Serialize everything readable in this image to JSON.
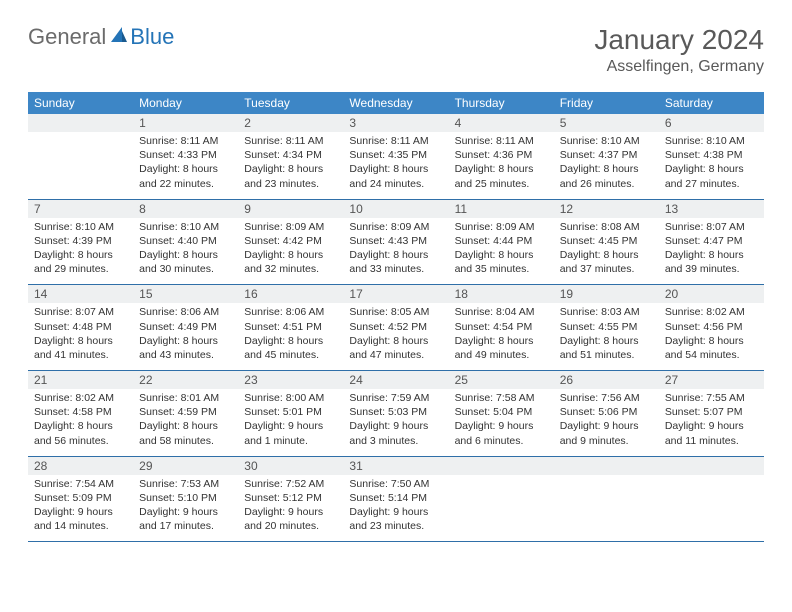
{
  "logo": {
    "part1": "General",
    "part2": "Blue"
  },
  "title": "January 2024",
  "location": "Asselfingen, Germany",
  "colors": {
    "header_bg": "#3d86c6",
    "header_text": "#ffffff",
    "daynum_bg": "#eef0f1",
    "daynum_text": "#555555",
    "body_text": "#333333",
    "rule": "#2f6fa8",
    "logo_gray": "#6b6b6b",
    "logo_blue": "#2474b7",
    "title_color": "#595959",
    "page_bg": "#ffffff"
  },
  "typography": {
    "title_fontsize": 28,
    "location_fontsize": 16,
    "header_fontsize": 12,
    "daynum_fontsize": 12,
    "body_fontsize": 10.5
  },
  "weekdays": [
    "Sunday",
    "Monday",
    "Tuesday",
    "Wednesday",
    "Thursday",
    "Friday",
    "Saturday"
  ],
  "weeks": [
    [
      {
        "n": "",
        "l1": "",
        "l2": "",
        "l3": "",
        "l4": ""
      },
      {
        "n": "1",
        "l1": "Sunrise: 8:11 AM",
        "l2": "Sunset: 4:33 PM",
        "l3": "Daylight: 8 hours",
        "l4": "and 22 minutes."
      },
      {
        "n": "2",
        "l1": "Sunrise: 8:11 AM",
        "l2": "Sunset: 4:34 PM",
        "l3": "Daylight: 8 hours",
        "l4": "and 23 minutes."
      },
      {
        "n": "3",
        "l1": "Sunrise: 8:11 AM",
        "l2": "Sunset: 4:35 PM",
        "l3": "Daylight: 8 hours",
        "l4": "and 24 minutes."
      },
      {
        "n": "4",
        "l1": "Sunrise: 8:11 AM",
        "l2": "Sunset: 4:36 PM",
        "l3": "Daylight: 8 hours",
        "l4": "and 25 minutes."
      },
      {
        "n": "5",
        "l1": "Sunrise: 8:10 AM",
        "l2": "Sunset: 4:37 PM",
        "l3": "Daylight: 8 hours",
        "l4": "and 26 minutes."
      },
      {
        "n": "6",
        "l1": "Sunrise: 8:10 AM",
        "l2": "Sunset: 4:38 PM",
        "l3": "Daylight: 8 hours",
        "l4": "and 27 minutes."
      }
    ],
    [
      {
        "n": "7",
        "l1": "Sunrise: 8:10 AM",
        "l2": "Sunset: 4:39 PM",
        "l3": "Daylight: 8 hours",
        "l4": "and 29 minutes."
      },
      {
        "n": "8",
        "l1": "Sunrise: 8:10 AM",
        "l2": "Sunset: 4:40 PM",
        "l3": "Daylight: 8 hours",
        "l4": "and 30 minutes."
      },
      {
        "n": "9",
        "l1": "Sunrise: 8:09 AM",
        "l2": "Sunset: 4:42 PM",
        "l3": "Daylight: 8 hours",
        "l4": "and 32 minutes."
      },
      {
        "n": "10",
        "l1": "Sunrise: 8:09 AM",
        "l2": "Sunset: 4:43 PM",
        "l3": "Daylight: 8 hours",
        "l4": "and 33 minutes."
      },
      {
        "n": "11",
        "l1": "Sunrise: 8:09 AM",
        "l2": "Sunset: 4:44 PM",
        "l3": "Daylight: 8 hours",
        "l4": "and 35 minutes."
      },
      {
        "n": "12",
        "l1": "Sunrise: 8:08 AM",
        "l2": "Sunset: 4:45 PM",
        "l3": "Daylight: 8 hours",
        "l4": "and 37 minutes."
      },
      {
        "n": "13",
        "l1": "Sunrise: 8:07 AM",
        "l2": "Sunset: 4:47 PM",
        "l3": "Daylight: 8 hours",
        "l4": "and 39 minutes."
      }
    ],
    [
      {
        "n": "14",
        "l1": "Sunrise: 8:07 AM",
        "l2": "Sunset: 4:48 PM",
        "l3": "Daylight: 8 hours",
        "l4": "and 41 minutes."
      },
      {
        "n": "15",
        "l1": "Sunrise: 8:06 AM",
        "l2": "Sunset: 4:49 PM",
        "l3": "Daylight: 8 hours",
        "l4": "and 43 minutes."
      },
      {
        "n": "16",
        "l1": "Sunrise: 8:06 AM",
        "l2": "Sunset: 4:51 PM",
        "l3": "Daylight: 8 hours",
        "l4": "and 45 minutes."
      },
      {
        "n": "17",
        "l1": "Sunrise: 8:05 AM",
        "l2": "Sunset: 4:52 PM",
        "l3": "Daylight: 8 hours",
        "l4": "and 47 minutes."
      },
      {
        "n": "18",
        "l1": "Sunrise: 8:04 AM",
        "l2": "Sunset: 4:54 PM",
        "l3": "Daylight: 8 hours",
        "l4": "and 49 minutes."
      },
      {
        "n": "19",
        "l1": "Sunrise: 8:03 AM",
        "l2": "Sunset: 4:55 PM",
        "l3": "Daylight: 8 hours",
        "l4": "and 51 minutes."
      },
      {
        "n": "20",
        "l1": "Sunrise: 8:02 AM",
        "l2": "Sunset: 4:56 PM",
        "l3": "Daylight: 8 hours",
        "l4": "and 54 minutes."
      }
    ],
    [
      {
        "n": "21",
        "l1": "Sunrise: 8:02 AM",
        "l2": "Sunset: 4:58 PM",
        "l3": "Daylight: 8 hours",
        "l4": "and 56 minutes."
      },
      {
        "n": "22",
        "l1": "Sunrise: 8:01 AM",
        "l2": "Sunset: 4:59 PM",
        "l3": "Daylight: 8 hours",
        "l4": "and 58 minutes."
      },
      {
        "n": "23",
        "l1": "Sunrise: 8:00 AM",
        "l2": "Sunset: 5:01 PM",
        "l3": "Daylight: 9 hours",
        "l4": "and 1 minute."
      },
      {
        "n": "24",
        "l1": "Sunrise: 7:59 AM",
        "l2": "Sunset: 5:03 PM",
        "l3": "Daylight: 9 hours",
        "l4": "and 3 minutes."
      },
      {
        "n": "25",
        "l1": "Sunrise: 7:58 AM",
        "l2": "Sunset: 5:04 PM",
        "l3": "Daylight: 9 hours",
        "l4": "and 6 minutes."
      },
      {
        "n": "26",
        "l1": "Sunrise: 7:56 AM",
        "l2": "Sunset: 5:06 PM",
        "l3": "Daylight: 9 hours",
        "l4": "and 9 minutes."
      },
      {
        "n": "27",
        "l1": "Sunrise: 7:55 AM",
        "l2": "Sunset: 5:07 PM",
        "l3": "Daylight: 9 hours",
        "l4": "and 11 minutes."
      }
    ],
    [
      {
        "n": "28",
        "l1": "Sunrise: 7:54 AM",
        "l2": "Sunset: 5:09 PM",
        "l3": "Daylight: 9 hours",
        "l4": "and 14 minutes."
      },
      {
        "n": "29",
        "l1": "Sunrise: 7:53 AM",
        "l2": "Sunset: 5:10 PM",
        "l3": "Daylight: 9 hours",
        "l4": "and 17 minutes."
      },
      {
        "n": "30",
        "l1": "Sunrise: 7:52 AM",
        "l2": "Sunset: 5:12 PM",
        "l3": "Daylight: 9 hours",
        "l4": "and 20 minutes."
      },
      {
        "n": "31",
        "l1": "Sunrise: 7:50 AM",
        "l2": "Sunset: 5:14 PM",
        "l3": "Daylight: 9 hours",
        "l4": "and 23 minutes."
      },
      {
        "n": "",
        "l1": "",
        "l2": "",
        "l3": "",
        "l4": ""
      },
      {
        "n": "",
        "l1": "",
        "l2": "",
        "l3": "",
        "l4": ""
      },
      {
        "n": "",
        "l1": "",
        "l2": "",
        "l3": "",
        "l4": ""
      }
    ]
  ]
}
